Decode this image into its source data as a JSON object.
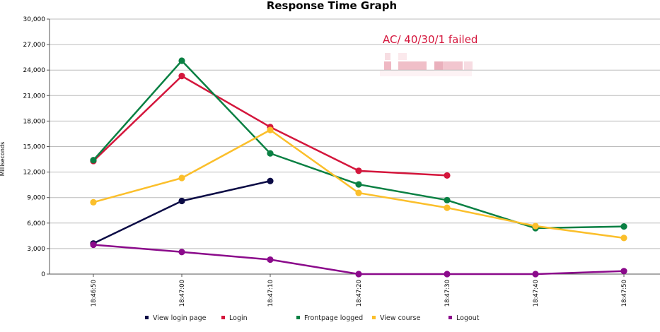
{
  "chart_data": {
    "type": "line",
    "title": "Response Time Graph",
    "ylabel": "Milliseconds",
    "xlabel": "",
    "ylim": [
      0,
      30000
    ],
    "yticks": [
      0,
      3000,
      6000,
      9000,
      12000,
      15000,
      18000,
      21000,
      24000,
      27000,
      30000
    ],
    "ytick_labels": [
      "0",
      "3,000",
      "6,000",
      "9,000",
      "12,000",
      "15,000",
      "18,000",
      "21,000",
      "24,000",
      "27,000",
      "30,000"
    ],
    "categories": [
      "18:46:50",
      "18:47:00",
      "18:47:10",
      "18:47:20",
      "18:47:30",
      "18:47:40",
      "18:47:50"
    ],
    "grid": true,
    "legend_position": "bottom",
    "annotation": "AC/ 40/30/1 failed",
    "series": [
      {
        "name": "View login page",
        "color": "#0b0b45",
        "values": [
          3600,
          8600,
          10950,
          null,
          null,
          null,
          null
        ]
      },
      {
        "name": "Login",
        "color": "#d4163c",
        "values": [
          13300,
          23300,
          17300,
          12150,
          11600,
          null,
          null
        ]
      },
      {
        "name": "Frontpage logged",
        "color": "#0a8043",
        "values": [
          13400,
          25100,
          14200,
          10550,
          8700,
          5400,
          5600
        ]
      },
      {
        "name": "View course",
        "color": "#fbbf2b",
        "values": [
          8450,
          11300,
          16950,
          9550,
          7800,
          5650,
          4250
        ]
      },
      {
        "name": "Logout",
        "color": "#8b0a8b",
        "values": [
          3450,
          2600,
          1700,
          0,
          0,
          0,
          350
        ]
      }
    ]
  }
}
